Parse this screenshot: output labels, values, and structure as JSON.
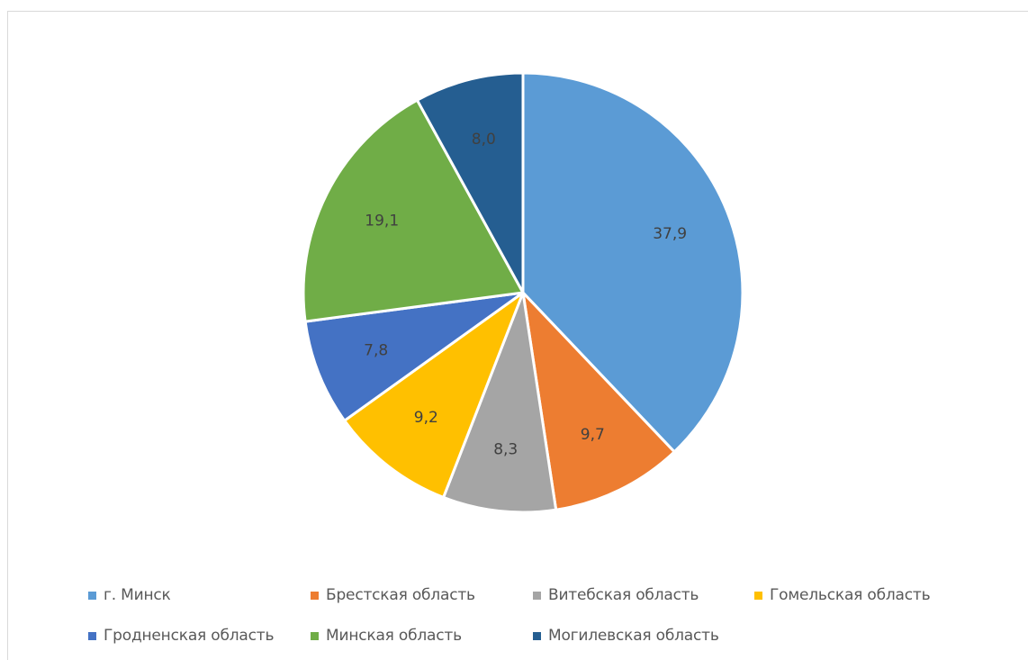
{
  "chart_data": {
    "type": "pie",
    "categories": [
      "г. Минск",
      "Брестская область",
      "Витебская область",
      "Гомельская область",
      "Гродненская область",
      "Минская область",
      "Могилевская область"
    ],
    "values": [
      37.9,
      9.7,
      8.3,
      9.2,
      7.8,
      19.1,
      8.0
    ],
    "data_labels": [
      "37,9",
      "9,7",
      "8,3",
      "9,2",
      "7,8",
      "19,1",
      "8,0"
    ],
    "colors": [
      "#5b9bd5",
      "#ed7d31",
      "#a5a5a5",
      "#ffc000",
      "#4472c4",
      "#70ad47",
      "#255e91"
    ],
    "start_angle": "12 o'clock",
    "direction": "clockwise",
    "legend_position": "bottom",
    "title": ""
  }
}
